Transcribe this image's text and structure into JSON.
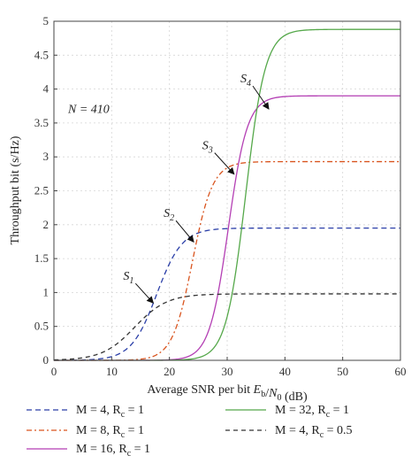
{
  "chart_data": {
    "type": "line",
    "xlabel": "Average SNR per bit E_b/N_0 (dB)",
    "ylabel": "Throughput bit (s/Hz)",
    "xlim": [
      0,
      60
    ],
    "ylim": [
      0,
      5
    ],
    "xticks": [
      "0",
      "10",
      "20",
      "30",
      "40",
      "50",
      "60"
    ],
    "yticks": [
      "0",
      "0.5",
      "1",
      "1.5",
      "2",
      "2.5",
      "3",
      "3.5",
      "4",
      "4.5",
      "5"
    ],
    "grid": true,
    "legend_position": "bottom",
    "annotations": {
      "n_label": "N = 410",
      "points": [
        {
          "label": "S1",
          "x": 17.5,
          "y": 0.82
        },
        {
          "label": "S2",
          "x": 24.5,
          "y": 1.72
        },
        {
          "label": "S3",
          "x": 31.5,
          "y": 2.72
        },
        {
          "label": "S4",
          "x": 37.5,
          "y": 3.68
        }
      ]
    },
    "series": [
      {
        "name": "M = 4, Rc = 1",
        "color": "#2b3fa8",
        "dash": "6,4",
        "cap": 1.95,
        "mid": 17.8,
        "scale": 2.2
      },
      {
        "name": "M = 8, Rc = 1",
        "color": "#d9541e",
        "dash": "6,3,2,3",
        "cap": 2.93,
        "mid": 24.0,
        "scale": 1.75
      },
      {
        "name": "M = 16, Rc = 1",
        "color": "#b43fb4",
        "dash": "",
        "cap": 3.9,
        "mid": 30.2,
        "scale": 1.65
      },
      {
        "name": "M = 32, Rc = 1",
        "color": "#55a84a",
        "dash": "",
        "cap": 4.88,
        "mid": 33.2,
        "scale": 1.7
      },
      {
        "name": "M = 4, Rc = 0.5",
        "color": "#333333",
        "dash": "5,4",
        "cap": 0.98,
        "mid": 14.0,
        "scale": 2.8
      }
    ],
    "legend_labels": [
      {
        "series": 0,
        "text": "M = 4, R",
        "sub": "c",
        "rest": " = 1"
      },
      {
        "series": 3,
        "text": "M = 32, R",
        "sub": "c",
        "rest": " = 1"
      },
      {
        "series": 1,
        "text": "M = 8, R",
        "sub": "c",
        "rest": " = 1"
      },
      {
        "series": 4,
        "text": "M = 4, R",
        "sub": "c",
        "rest": " = 0.5"
      },
      {
        "series": 2,
        "text": "M = 16, R",
        "sub": "c",
        "rest": " = 1"
      }
    ]
  }
}
